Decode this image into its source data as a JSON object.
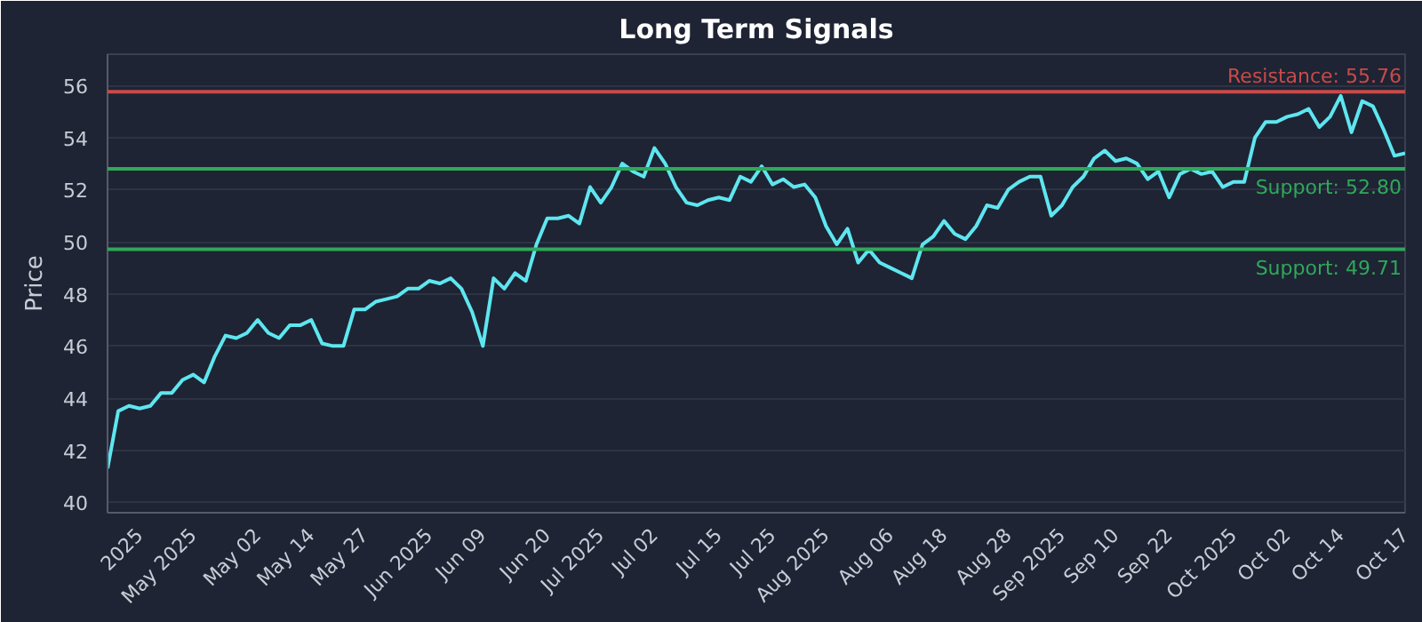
{
  "chart_data": {
    "type": "line",
    "title": "Long Term Signals",
    "ylabel": "Price",
    "categories": [
      null,
      null,
      null,
      "2025",
      null,
      null,
      null,
      null,
      "May 2025",
      null,
      null,
      null,
      null,
      null,
      "May 02",
      null,
      null,
      null,
      null,
      "May 14",
      null,
      null,
      null,
      null,
      "May 27",
      null,
      null,
      null,
      null,
      null,
      "Jun 2025",
      null,
      null,
      null,
      null,
      "Jun 09",
      null,
      null,
      null,
      null,
      null,
      "Jun 20",
      null,
      null,
      null,
      null,
      "Jul 2025",
      null,
      null,
      null,
      null,
      "Jul 02",
      null,
      null,
      null,
      null,
      null,
      "Jul 15",
      null,
      null,
      null,
      null,
      "Jul 25",
      null,
      null,
      null,
      null,
      "Aug 2025",
      null,
      null,
      null,
      null,
      null,
      "Aug 06",
      null,
      null,
      null,
      null,
      "Aug 18",
      null,
      null,
      null,
      null,
      null,
      "Aug 28",
      null,
      null,
      null,
      null,
      "Sep 2025",
      null,
      null,
      null,
      null,
      "Sep 10",
      null,
      null,
      null,
      null,
      "Sep 22",
      null,
      null,
      null,
      null,
      null,
      "Oct 2025",
      null,
      null,
      null,
      null,
      "Oct 02",
      null,
      null,
      null,
      null,
      "Oct 14",
      null,
      null,
      null,
      null,
      null,
      "Oct 17"
    ],
    "series": [
      {
        "color": "#5ee6f0",
        "values": [
          41.3,
          43.5,
          43.7,
          43.6,
          43.7,
          44.2,
          44.2,
          44.7,
          44.9,
          44.6,
          45.6,
          46.4,
          46.3,
          46.5,
          47.0,
          46.5,
          46.3,
          46.8,
          46.8,
          47.0,
          46.1,
          46.0,
          46.0,
          47.4,
          47.4,
          47.7,
          47.8,
          47.9,
          48.2,
          48.2,
          48.5,
          48.4,
          48.6,
          48.2,
          47.3,
          46.0,
          48.6,
          48.2,
          48.8,
          48.5,
          49.9,
          50.9,
          50.9,
          51.0,
          50.7,
          52.1,
          51.5,
          52.1,
          53.0,
          52.7,
          52.5,
          53.6,
          53.0,
          52.1,
          51.5,
          51.4,
          51.6,
          51.7,
          51.6,
          52.5,
          52.3,
          52.9,
          52.2,
          52.4,
          52.1,
          52.2,
          51.7,
          50.6,
          49.9,
          50.5,
          49.2,
          49.7,
          49.2,
          49.0,
          48.8,
          48.6,
          49.9,
          50.2,
          50.8,
          50.3,
          50.1,
          50.6,
          51.4,
          51.3,
          52.0,
          52.3,
          52.5,
          52.5,
          51.0,
          51.4,
          52.1,
          52.5,
          53.2,
          53.5,
          53.1,
          53.2,
          53.0,
          52.4,
          52.7,
          51.7,
          52.6,
          52.8,
          52.6,
          52.7,
          52.1,
          52.3,
          52.3,
          54.0,
          54.6,
          54.6,
          54.8,
          54.9,
          55.1,
          54.4,
          54.8,
          55.6,
          54.2,
          55.4,
          55.2,
          54.3,
          53.3,
          53.4
        ]
      }
    ],
    "ylim": [
      39.6,
      57.2
    ],
    "yticks": [
      40,
      42,
      44,
      46,
      48,
      50,
      52,
      54,
      56
    ],
    "grid": "y",
    "ref_lines": [
      {
        "axis": "y",
        "value": 55.76,
        "label": "Resistance: 55.76",
        "color": "#c94a4a"
      },
      {
        "axis": "y",
        "value": 52.8,
        "label": "Support: 52.80",
        "color": "#2fa85a"
      },
      {
        "axis": "y",
        "value": 49.71,
        "label": "Support: 49.71",
        "color": "#2fa85a"
      }
    ]
  }
}
